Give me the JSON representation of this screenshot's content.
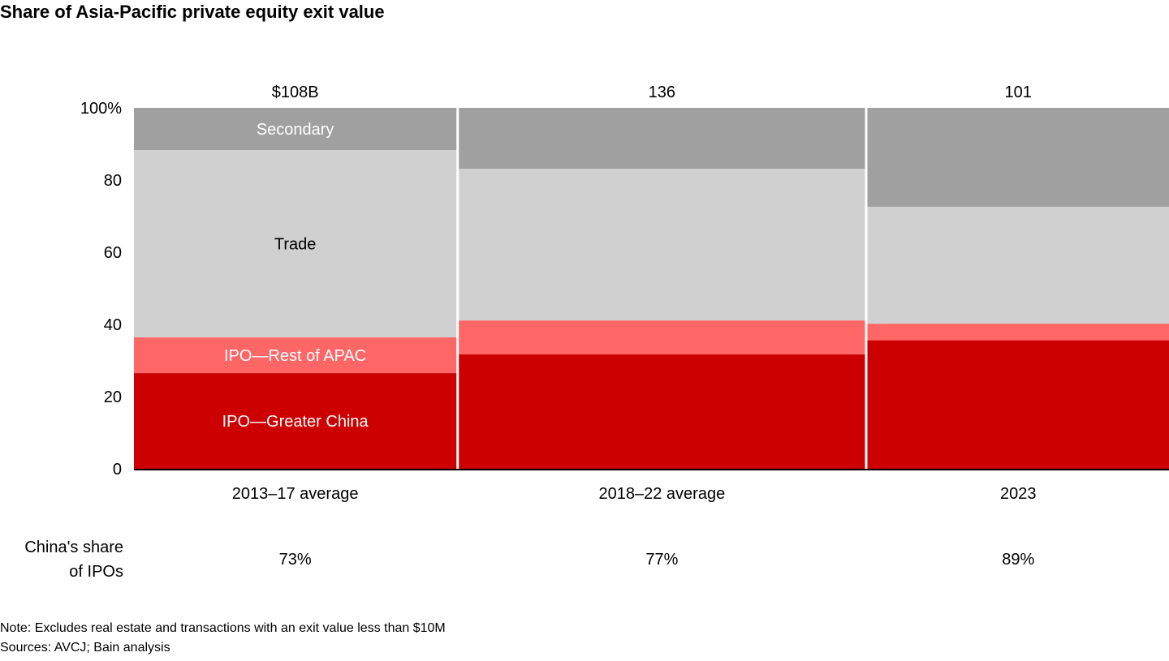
{
  "chart_data": {
    "type": "marimekko",
    "title": "Share of Asia-Pacific private equity exit value",
    "categories": [
      "2013–17 average",
      "2018–22 average",
      "2023"
    ],
    "totals": [
      108,
      136,
      101
    ],
    "total_labels": [
      "$108B",
      "136",
      "101"
    ],
    "series": [
      {
        "name": "IPO—Greater China",
        "values": [
          26.5,
          31.7,
          35.6
        ],
        "color": "#cc0000",
        "text_color": "#ffffff"
      },
      {
        "name": "IPO—Rest of APAC",
        "values": [
          9.9,
          9.4,
          4.6
        ],
        "color": "#ff6666",
        "text_color": "#ffffff"
      },
      {
        "name": "Trade",
        "values": [
          51.9,
          42.0,
          32.4
        ],
        "color": "#d0d0d0",
        "text_color": "#000000"
      },
      {
        "name": "Secondary",
        "values": [
          11.7,
          16.9,
          27.4
        ],
        "color": "#a0a0a0",
        "text_color": "#ffffff"
      }
    ],
    "ylim": [
      0,
      100
    ],
    "y_ticks": [
      "0",
      "20",
      "40",
      "60",
      "80",
      "100%"
    ],
    "y_tick_values": [
      0,
      20,
      40,
      60,
      80,
      100
    ],
    "grid": false,
    "china_share_label": "China's share of IPOs",
    "china_share_label_lines": [
      "China's share",
      "of IPOs"
    ],
    "china_share": [
      "73%",
      "77%",
      "89%"
    ],
    "note": "Note: Excludes real estate and transactions with an exit value less than $10M",
    "sources": "Sources: AVCJ; Bain analysis"
  }
}
